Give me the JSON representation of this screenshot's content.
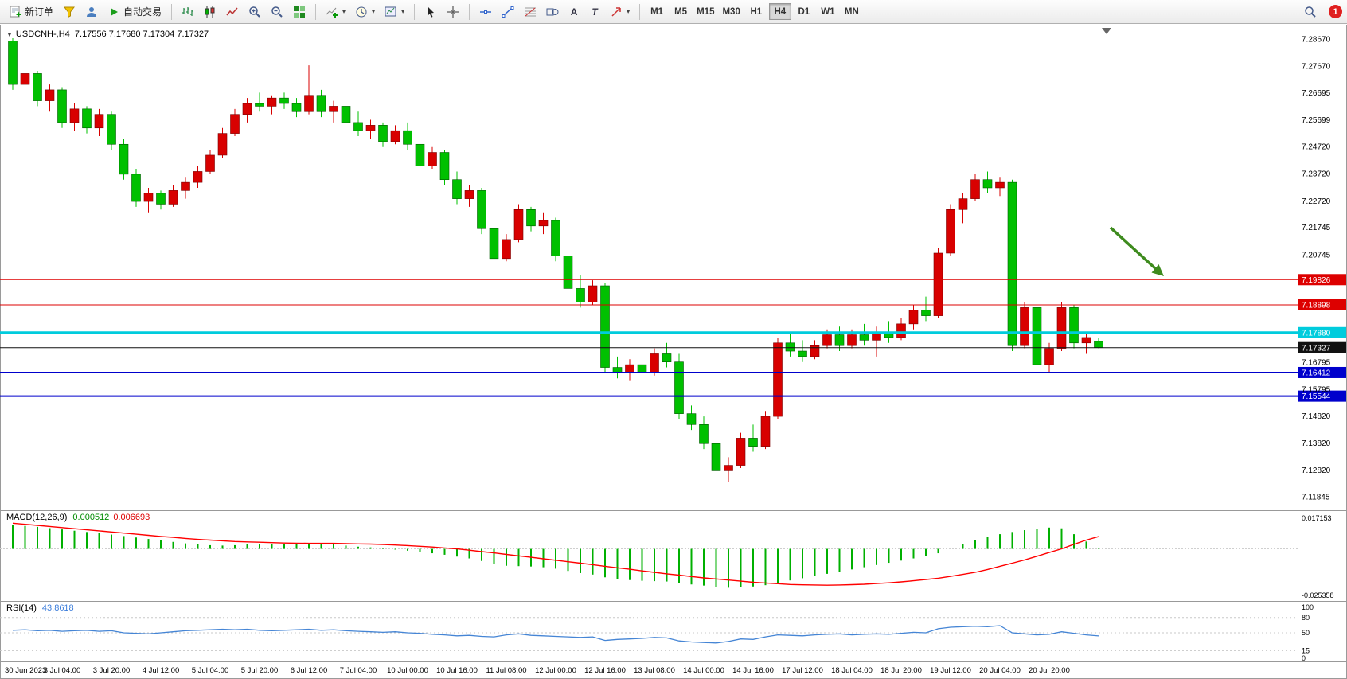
{
  "colors": {
    "candle_up": "#d80000",
    "candle_down": "#00c000",
    "candle_up_edge": "#7a0000",
    "candle_down_edge": "#005a00",
    "macd_hist": "#00b000",
    "macd_signal": "#ff0000",
    "rsi_line": "#4585d5",
    "arrow_green": "#3e8b1e"
  },
  "toolbar": {
    "new_order_label": "新订单",
    "algo_trading_label": "自动交易",
    "timeframes": [
      "M1",
      "M5",
      "M15",
      "M30",
      "H1",
      "H4",
      "D1",
      "W1",
      "MN"
    ],
    "active_timeframe": "H4",
    "notification_count": "1",
    "text_tool_label": "A",
    "label_tool_label": "T"
  },
  "chart": {
    "one_click_arrow": "▼",
    "symbol_period": "USDCNH-,H4",
    "ohlc_text": "7.17556 7.17680 7.17304 7.17327"
  },
  "macd_panel": {
    "label": "MACD(12,26,9)",
    "value_main": "0.000512",
    "value_signal": "0.006693",
    "axis_max": "0.017153",
    "axis_min": "-0.025358"
  },
  "rsi_panel": {
    "label": "RSI(14)",
    "value": "43.8618",
    "axis_labels": [
      "100",
      "80",
      "50",
      "15",
      "0"
    ],
    "axis_values": [
      100,
      80,
      50,
      15,
      0
    ],
    "level_lines": [
      80,
      50,
      15
    ]
  },
  "price_axis": {
    "ticks": [
      "7.28670",
      "7.27670",
      "7.26695",
      "7.25699",
      "7.24720",
      "7.23720",
      "7.22720",
      "7.21745",
      "7.20745",
      "7.16795",
      "7.15795",
      "7.14820",
      "7.13820",
      "7.12820",
      "7.11845"
    ],
    "tick_values": [
      7.2867,
      7.2767,
      7.26695,
      7.25699,
      7.2472,
      7.2372,
      7.2272,
      7.21745,
      7.20745,
      7.16795,
      7.15795,
      7.1482,
      7.1382,
      7.1282,
      7.11845
    ]
  },
  "hlines": [
    {
      "label": "7.19826",
      "value": 7.19826,
      "color": "#dd0000",
      "width": 1
    },
    {
      "label": "7.18898",
      "value": 7.18898,
      "color": "#dd0000",
      "width": 1
    },
    {
      "label": "7.17880",
      "value": 7.1788,
      "color": "#00ccdd",
      "width": 3
    },
    {
      "label": "7.17327",
      "value": 7.17327,
      "color": "#111111",
      "width": 1
    },
    {
      "label": "7.16412",
      "value": 7.16412,
      "color": "#0000cc",
      "width": 2
    },
    {
      "label": "7.15544",
      "value": 7.15544,
      "color": "#0000cc",
      "width": 2
    }
  ],
  "chart_data": {
    "type": "candlestick",
    "symbol": "USDCNH-",
    "timeframe": "H4",
    "current_ohlc": [
      7.17556,
      7.1768,
      7.17304,
      7.17327
    ],
    "ylim": [
      7.11845,
      7.2867
    ],
    "bars_per_label": 4,
    "x_labels": [
      "30 Jun 2023",
      "3 Jul 04:00",
      "3 Jul 20:00",
      "4 Jul 12:00",
      "5 Jul 04:00",
      "5 Jul 20:00",
      "6 Jul 12:00",
      "7 Jul 04:00",
      "10 Jul 00:00",
      "10 Jul 16:00",
      "11 Jul 08:00",
      "12 Jul 00:00",
      "12 Jul 16:00",
      "13 Jul 08:00",
      "14 Jul 00:00",
      "14 Jul 16:00",
      "17 Jul 12:00",
      "18 Jul 04:00",
      "18 Jul 20:00",
      "19 Jul 12:00",
      "20 Jul 04:00",
      "20 Jul 20:00"
    ],
    "candles_ohlc": [
      [
        7.286,
        7.287,
        7.268,
        7.27
      ],
      [
        7.27,
        7.276,
        7.266,
        7.274
      ],
      [
        7.274,
        7.275,
        7.262,
        7.264
      ],
      [
        7.264,
        7.27,
        7.26,
        7.268
      ],
      [
        7.268,
        7.269,
        7.254,
        7.256
      ],
      [
        7.256,
        7.263,
        7.253,
        7.261
      ],
      [
        7.261,
        7.262,
        7.252,
        7.254
      ],
      [
        7.254,
        7.261,
        7.251,
        7.259
      ],
      [
        7.259,
        7.26,
        7.246,
        7.248
      ],
      [
        7.248,
        7.25,
        7.235,
        7.237
      ],
      [
        7.237,
        7.239,
        7.225,
        7.227
      ],
      [
        7.227,
        7.232,
        7.223,
        7.23
      ],
      [
        7.23,
        7.231,
        7.224,
        7.226
      ],
      [
        7.226,
        7.233,
        7.225,
        7.231
      ],
      [
        7.231,
        7.236,
        7.228,
        7.234
      ],
      [
        7.234,
        7.24,
        7.232,
        7.238
      ],
      [
        7.238,
        7.246,
        7.237,
        7.244
      ],
      [
        7.244,
        7.254,
        7.243,
        7.252
      ],
      [
        7.252,
        7.261,
        7.251,
        7.259
      ],
      [
        7.259,
        7.265,
        7.256,
        7.263
      ],
      [
        7.263,
        7.267,
        7.26,
        7.262
      ],
      [
        7.262,
        7.266,
        7.259,
        7.265
      ],
      [
        7.265,
        7.267,
        7.261,
        7.263
      ],
      [
        7.263,
        7.265,
        7.258,
        7.26
      ],
      [
        7.26,
        7.277,
        7.259,
        7.266
      ],
      [
        7.266,
        7.268,
        7.258,
        7.26
      ],
      [
        7.26,
        7.264,
        7.256,
        7.262
      ],
      [
        7.262,
        7.263,
        7.254,
        7.256
      ],
      [
        7.256,
        7.26,
        7.251,
        7.253
      ],
      [
        7.253,
        7.257,
        7.25,
        7.255
      ],
      [
        7.255,
        7.256,
        7.247,
        7.249
      ],
      [
        7.249,
        7.255,
        7.248,
        7.253
      ],
      [
        7.253,
        7.256,
        7.246,
        7.248
      ],
      [
        7.248,
        7.25,
        7.238,
        7.24
      ],
      [
        7.24,
        7.247,
        7.239,
        7.245
      ],
      [
        7.245,
        7.246,
        7.233,
        7.235
      ],
      [
        7.235,
        7.238,
        7.226,
        7.228
      ],
      [
        7.228,
        7.233,
        7.225,
        7.231
      ],
      [
        7.231,
        7.232,
        7.215,
        7.217
      ],
      [
        7.217,
        7.218,
        7.204,
        7.206
      ],
      [
        7.206,
        7.215,
        7.205,
        7.213
      ],
      [
        7.213,
        7.226,
        7.212,
        7.224
      ],
      [
        7.224,
        7.225,
        7.216,
        7.218
      ],
      [
        7.218,
        7.223,
        7.215,
        7.22
      ],
      [
        7.22,
        7.221,
        7.205,
        7.207
      ],
      [
        7.207,
        7.209,
        7.193,
        7.195
      ],
      [
        7.195,
        7.2,
        7.188,
        7.19
      ],
      [
        7.19,
        7.198,
        7.189,
        7.196
      ],
      [
        7.196,
        7.197,
        7.164,
        7.166
      ],
      [
        7.166,
        7.17,
        7.162,
        7.164
      ],
      [
        7.164,
        7.169,
        7.161,
        7.167
      ],
      [
        7.167,
        7.17,
        7.162,
        7.164
      ],
      [
        7.164,
        7.173,
        7.163,
        7.171
      ],
      [
        7.171,
        7.175,
        7.166,
        7.168
      ],
      [
        7.168,
        7.171,
        7.147,
        7.149
      ],
      [
        7.149,
        7.152,
        7.143,
        7.145
      ],
      [
        7.145,
        7.148,
        7.136,
        7.138
      ],
      [
        7.138,
        7.14,
        7.126,
        7.128
      ],
      [
        7.128,
        7.133,
        7.124,
        7.13
      ],
      [
        7.13,
        7.142,
        7.129,
        7.14
      ],
      [
        7.14,
        7.145,
        7.135,
        7.137
      ],
      [
        7.137,
        7.15,
        7.136,
        7.148
      ],
      [
        7.148,
        7.177,
        7.147,
        7.175
      ],
      [
        7.175,
        7.179,
        7.17,
        7.172
      ],
      [
        7.172,
        7.176,
        7.168,
        7.17
      ],
      [
        7.17,
        7.176,
        7.169,
        7.174
      ],
      [
        7.174,
        7.18,
        7.173,
        7.178
      ],
      [
        7.178,
        7.181,
        7.172,
        7.174
      ],
      [
        7.174,
        7.18,
        7.173,
        7.178
      ],
      [
        7.178,
        7.182,
        7.174,
        7.176
      ],
      [
        7.176,
        7.181,
        7.17,
        7.179
      ],
      [
        7.179,
        7.183,
        7.175,
        7.177
      ],
      [
        7.177,
        7.184,
        7.176,
        7.182
      ],
      [
        7.182,
        7.189,
        7.18,
        7.187
      ],
      [
        7.187,
        7.192,
        7.183,
        7.185
      ],
      [
        7.185,
        7.21,
        7.184,
        7.208
      ],
      [
        7.208,
        7.226,
        7.207,
        7.224
      ],
      [
        7.224,
        7.23,
        7.219,
        7.228
      ],
      [
        7.228,
        7.237,
        7.227,
        7.235
      ],
      [
        7.235,
        7.238,
        7.23,
        7.232
      ],
      [
        7.232,
        7.236,
        7.229,
        7.234
      ],
      [
        7.234,
        7.235,
        7.172,
        7.174
      ],
      [
        7.174,
        7.19,
        7.173,
        7.188
      ],
      [
        7.188,
        7.191,
        7.165,
        7.167
      ],
      [
        7.167,
        7.175,
        7.164,
        7.173
      ],
      [
        7.173,
        7.19,
        7.172,
        7.188
      ],
      [
        7.188,
        7.189,
        7.173,
        7.175
      ],
      [
        7.175,
        7.179,
        7.171,
        7.177
      ],
      [
        7.17556,
        7.1768,
        7.17304,
        7.17327
      ]
    ],
    "indicators": [
      {
        "type": "macd",
        "params": [
          12,
          26,
          9
        ],
        "value_main": 0.000512,
        "value_signal": 0.006693,
        "axis_max": 0.017153,
        "axis_min": -0.025358,
        "histogram": [
          0.013,
          0.0125,
          0.012,
          0.0113,
          0.0106,
          0.0099,
          0.0092,
          0.0085,
          0.0078,
          0.007,
          0.0062,
          0.0054,
          0.0046,
          0.0038,
          0.003,
          0.0024,
          0.002,
          0.0018,
          0.002,
          0.0024,
          0.0026,
          0.0028,
          0.0028,
          0.0026,
          0.003,
          0.0028,
          0.0024,
          0.0018,
          0.0012,
          0.0008,
          0.0002,
          -0.0004,
          -0.001,
          -0.0018,
          -0.0024,
          -0.0032,
          -0.0042,
          -0.0052,
          -0.0066,
          -0.0082,
          -0.0092,
          -0.0094,
          -0.0096,
          -0.01,
          -0.0108,
          -0.012,
          -0.0132,
          -0.014,
          -0.0155,
          -0.0165,
          -0.017,
          -0.0174,
          -0.0176,
          -0.0178,
          -0.0186,
          -0.0194,
          -0.02,
          -0.0208,
          -0.0212,
          -0.021,
          -0.0205,
          -0.0198,
          -0.0185,
          -0.0172,
          -0.016,
          -0.0148,
          -0.0136,
          -0.0124,
          -0.0112,
          -0.01,
          -0.0088,
          -0.0076,
          -0.0064,
          -0.0052,
          -0.004,
          -0.0024,
          0.0,
          0.0024,
          0.0046,
          0.0064,
          0.008,
          0.0092,
          0.0102,
          0.011,
          0.0116,
          0.0112,
          0.008,
          0.004,
          0.0005
        ],
        "signal": [
          0.014,
          0.0134,
          0.0128,
          0.0122,
          0.0116,
          0.011,
          0.0104,
          0.0098,
          0.0092,
          0.0086,
          0.008,
          0.0074,
          0.0068,
          0.0063,
          0.0057,
          0.0052,
          0.0048,
          0.0044,
          0.004,
          0.0038,
          0.0036,
          0.0034,
          0.0032,
          0.0031,
          0.003,
          0.003,
          0.003,
          0.0029,
          0.0027,
          0.0026,
          0.0024,
          0.0021,
          0.0018,
          0.0014,
          0.001,
          0.0005,
          0.0,
          -0.0007,
          -0.0015,
          -0.0022,
          -0.003,
          -0.0038,
          -0.0046,
          -0.0054,
          -0.0062,
          -0.007,
          -0.0078,
          -0.0086,
          -0.0095,
          -0.0103,
          -0.0111,
          -0.012,
          -0.0128,
          -0.0136,
          -0.0143,
          -0.0151,
          -0.0158,
          -0.0164,
          -0.017,
          -0.0176,
          -0.0182,
          -0.0186,
          -0.019,
          -0.0194,
          -0.0196,
          -0.0197,
          -0.0198,
          -0.0197,
          -0.0195,
          -0.0193,
          -0.0189,
          -0.0185,
          -0.018,
          -0.0174,
          -0.0167,
          -0.016,
          -0.015,
          -0.0139,
          -0.0128,
          -0.0112,
          -0.0095,
          -0.0078,
          -0.006,
          -0.004,
          -0.002,
          0.0,
          0.0025,
          0.0048,
          0.0067
        ]
      },
      {
        "type": "rsi",
        "period": 14,
        "value": 43.8618,
        "levels": [
          80,
          50,
          15
        ],
        "values": [
          55,
          56,
          54,
          55,
          53,
          54,
          55,
          53,
          54,
          50,
          49,
          48,
          50,
          52,
          54,
          55,
          56,
          57,
          56,
          57,
          55,
          54,
          55,
          56,
          57,
          55,
          56,
          54,
          53,
          52,
          51,
          52,
          50,
          49,
          47,
          46,
          44,
          45,
          43,
          42,
          46,
          48,
          45,
          44,
          43,
          42,
          41,
          42,
          35,
          37,
          38,
          39,
          41,
          40,
          34,
          32,
          31,
          30,
          33,
          38,
          37,
          42,
          46,
          45,
          44,
          46,
          47,
          48,
          46,
          47,
          48,
          47,
          49,
          51,
          50,
          58,
          61,
          62,
          63,
          62,
          64,
          50,
          48,
          46,
          47,
          52,
          49,
          46,
          43.86
        ]
      }
    ]
  }
}
